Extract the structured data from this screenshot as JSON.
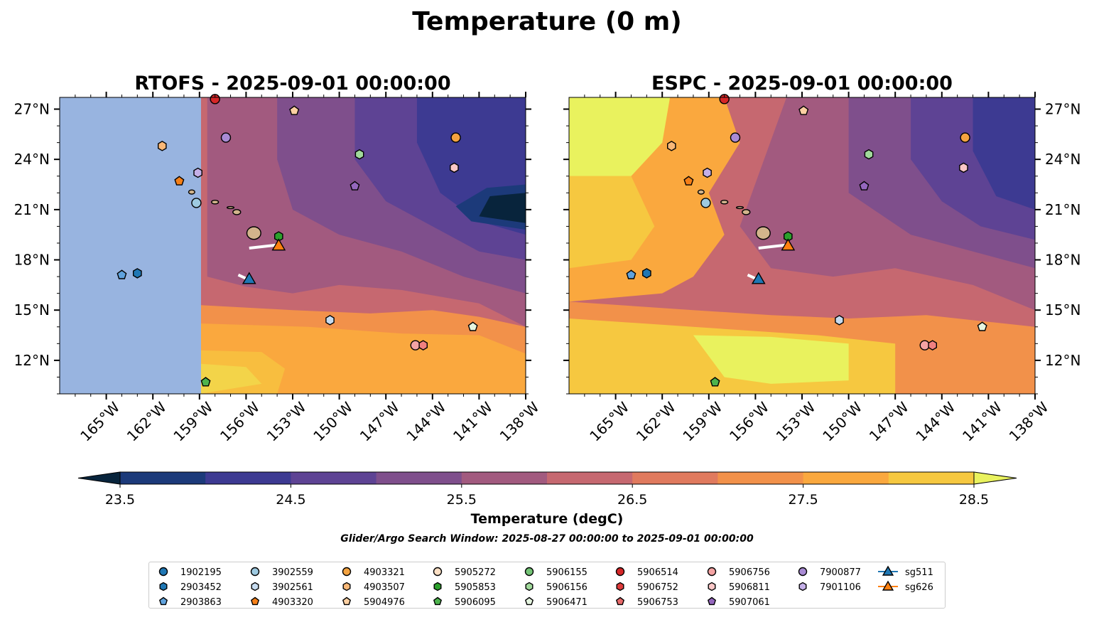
{
  "figure_title": "Temperature (0 m)",
  "chart_data": {
    "type": "filled-contour-map",
    "panels": [
      {
        "name": "RTOFS",
        "title": "RTOFS - 2025-09-01 00:00:00"
      },
      {
        "name": "ESPC",
        "title": "ESPC - 2025-09-01 00:00:00"
      }
    ],
    "extent": {
      "lon": [
        -168,
        -138
      ],
      "lat": [
        10,
        27.7
      ]
    },
    "x_ticks": [
      -165,
      -162,
      -159,
      -156,
      -153,
      -150,
      -147,
      -144,
      -141,
      -138
    ],
    "x_tick_labels": [
      "165°W",
      "162°W",
      "159°W",
      "156°W",
      "153°W",
      "150°W",
      "147°W",
      "144°W",
      "141°W",
      "138°W"
    ],
    "y_ticks": [
      12,
      15,
      18,
      21,
      24,
      27
    ],
    "y_tick_labels": [
      "12°N",
      "15°N",
      "18°N",
      "21°N",
      "24°N",
      "27°N"
    ],
    "colorbar": {
      "label": "Temperature (degC)",
      "min": 23.5,
      "max": 28.5,
      "step": 0.25,
      "ticks": [
        23.5,
        24.5,
        25.5,
        26.5,
        27.5,
        28.5
      ],
      "tick_labels": [
        "23.5",
        "24.5",
        "25.5",
        "26.5",
        "27.5",
        "28.5"
      ],
      "colors": [
        "#08243c",
        "#1c3a7a",
        "#3d3a92",
        "#5e4394",
        "#7f4f8c",
        "#a25a7f",
        "#c66870",
        "#e07a5e",
        "#f2914a",
        "#faa83e",
        "#f6c840",
        "#e9f25e"
      ],
      "extend": "both"
    },
    "subtitle": "Glider/Argo Search Window: 2025-08-27 00:00:00 to 2025-09-01 00:00:00",
    "argo_floats": [
      {
        "id": "1902195",
        "marker": "circle",
        "color": "#1f77b4"
      },
      {
        "id": "2903452",
        "marker": "hexagon",
        "color": "#1f77b4",
        "lon": -163.0,
        "lat": 17.2
      },
      {
        "id": "2903863",
        "marker": "pentagon",
        "color": "#5fa2dd",
        "lon": -164.0,
        "lat": 17.1
      },
      {
        "id": "3902559",
        "marker": "circle",
        "color": "#9ecae1",
        "lon": -159.2,
        "lat": 21.4
      },
      {
        "id": "3902561",
        "marker": "hexagon",
        "color": "#c6dbef",
        "lon": -150.6,
        "lat": 14.4
      },
      {
        "id": "4903320",
        "marker": "pentagon",
        "color": "#f57f17",
        "lon": -160.3,
        "lat": 22.7
      },
      {
        "id": "4903321",
        "marker": "circle",
        "color": "#f4a340",
        "lon": -142.5,
        "lat": 25.3
      },
      {
        "id": "4903507",
        "marker": "hexagon",
        "color": "#f9b878",
        "lon": -161.4,
        "lat": 24.8
      },
      {
        "id": "5904976",
        "marker": "pentagon",
        "color": "#fdd0a2",
        "lon": -152.9,
        "lat": 26.9
      },
      {
        "id": "5905272",
        "marker": "circle",
        "color": "#fde0c5"
      },
      {
        "id": "5905853",
        "marker": "hexagon",
        "color": "#2ca02c",
        "lon": -153.9,
        "lat": 19.4
      },
      {
        "id": "5906095",
        "marker": "pentagon",
        "color": "#4db34d",
        "lon": -158.6,
        "lat": 10.7
      },
      {
        "id": "5906155",
        "marker": "circle",
        "color": "#74c476"
      },
      {
        "id": "5906156",
        "marker": "hexagon",
        "color": "#a1d99b",
        "lon": -148.7,
        "lat": 24.3
      },
      {
        "id": "5906471",
        "marker": "pentagon",
        "color": "#e5f5e0",
        "lon": -141.4,
        "lat": 14.0
      },
      {
        "id": "5906514",
        "marker": "circle",
        "color": "#d62728",
        "lon": -158.0,
        "lat": 27.6
      },
      {
        "id": "5906752",
        "marker": "hexagon",
        "color": "#de3b3b"
      },
      {
        "id": "5906753",
        "marker": "pentagon",
        "color": "#e86a6a"
      },
      {
        "id": "5906756",
        "marker": "circle",
        "color": "#f4a3a3",
        "lon": -145.1,
        "lat": 12.9
      },
      {
        "id": "5906811",
        "marker": "hexagon",
        "color": "#fbc7c7",
        "lon": -142.6,
        "lat": 23.5
      },
      {
        "id": "5907061",
        "marker": "pentagon",
        "color": "#9467bd",
        "lon": -149.0,
        "lat": 22.4
      },
      {
        "id": "7900877",
        "marker": "circle",
        "color": "#a98bd4",
        "lon": -157.3,
        "lat": 25.3
      },
      {
        "id": "7901106",
        "marker": "hexagon",
        "color": "#c5b0e8",
        "lon": -159.1,
        "lat": 23.2
      },
      {
        "id": "5906756b",
        "label_hidden": true,
        "marker": "hexagon",
        "color": "#f08080",
        "lon": -144.6,
        "lat": 12.9
      }
    ],
    "gliders": [
      {
        "id": "sg511",
        "marker": "triangle",
        "color": "#1f77b4",
        "lon": -155.8,
        "lat": 16.8
      },
      {
        "id": "sg626",
        "marker": "triangle",
        "color": "#ff7f0e",
        "lon": -153.9,
        "lat": 18.8
      }
    ]
  },
  "legend": [
    {
      "label": "1902195",
      "marker": "circle",
      "color": "#1f77b4"
    },
    {
      "label": "2903452",
      "marker": "hexagon",
      "color": "#1f77b4"
    },
    {
      "label": "2903863",
      "marker": "pentagon",
      "color": "#5fa2dd"
    },
    {
      "label": "3902559",
      "marker": "circle",
      "color": "#9ecae1"
    },
    {
      "label": "3902561",
      "marker": "hexagon",
      "color": "#c6dbef"
    },
    {
      "label": "4903320",
      "marker": "pentagon",
      "color": "#f57f17"
    },
    {
      "label": "4903321",
      "marker": "circle",
      "color": "#f4a340"
    },
    {
      "label": "4903507",
      "marker": "hexagon",
      "color": "#f9b878"
    },
    {
      "label": "5904976",
      "marker": "pentagon",
      "color": "#fdd0a2"
    },
    {
      "label": "5905272",
      "marker": "circle",
      "color": "#fde0c5"
    },
    {
      "label": "5905853",
      "marker": "hexagon",
      "color": "#2ca02c"
    },
    {
      "label": "5906095",
      "marker": "pentagon",
      "color": "#4db34d"
    },
    {
      "label": "5906155",
      "marker": "circle",
      "color": "#74c476"
    },
    {
      "label": "5906156",
      "marker": "hexagon",
      "color": "#a1d99b"
    },
    {
      "label": "5906471",
      "marker": "pentagon",
      "color": "#e5f5e0"
    },
    {
      "label": "5906514",
      "marker": "circle",
      "color": "#d62728"
    },
    {
      "label": "5906752",
      "marker": "hexagon",
      "color": "#de3b3b"
    },
    {
      "label": "5906753",
      "marker": "pentagon",
      "color": "#e86a6a"
    },
    {
      "label": "5906756",
      "marker": "circle",
      "color": "#f4a3a3"
    },
    {
      "label": "5906811",
      "marker": "hexagon",
      "color": "#fbc7c7"
    },
    {
      "label": "5907061",
      "marker": "pentagon",
      "color": "#9467bd"
    },
    {
      "label": "7900877",
      "marker": "circle",
      "color": "#a98bd4"
    },
    {
      "label": "7901106",
      "marker": "hexagon",
      "color": "#c5b0e8"
    },
    {
      "label": "",
      "marker": "none",
      "color": ""
    },
    {
      "label": "sg511",
      "marker": "triangle-line",
      "color": "#1f77b4"
    },
    {
      "label": "sg626",
      "marker": "triangle-line",
      "color": "#ff7f0e"
    }
  ],
  "colors": {
    "land_fill": "#98b4e0",
    "island": "#d2b48c"
  }
}
